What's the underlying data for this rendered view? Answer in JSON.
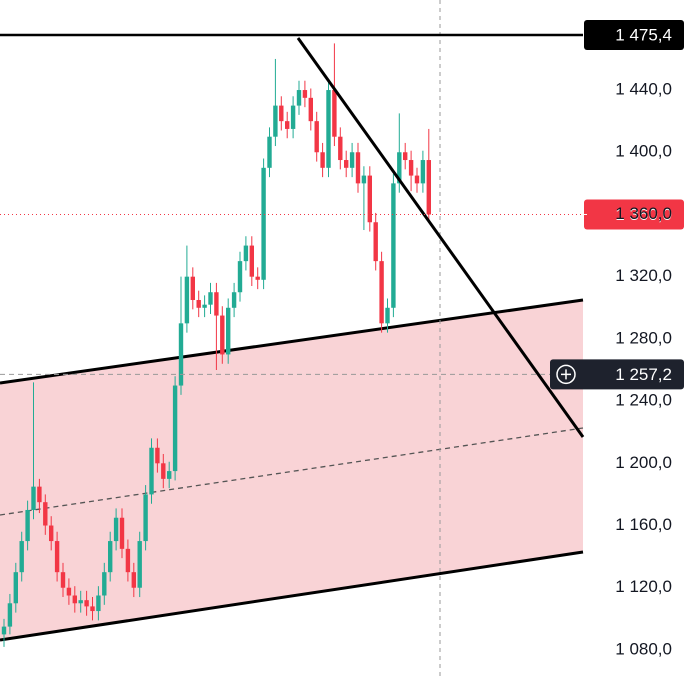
{
  "chart_data": {
    "type": "candlestick",
    "open": [
      1090,
      1095,
      1110,
      1130,
      1150,
      1170,
      1185,
      1175,
      1160,
      1150,
      1130,
      1120,
      1115,
      1110,
      1112,
      1108,
      1105,
      1115,
      1130,
      1150,
      1165,
      1145,
      1130,
      1120,
      1150,
      1180,
      1210,
      1200,
      1190,
      1195,
      1250,
      1290,
      1320,
      1305,
      1300,
      1302,
      1310,
      1295,
      1270,
      1300,
      1310,
      1330,
      1340,
      1320,
      1318,
      1390,
      1410,
      1430,
      1420,
      1415,
      1430,
      1440,
      1435,
      1420,
      1400,
      1390,
      1440,
      1410,
      1395,
      1390,
      1400,
      1380,
      1385,
      1355,
      1330,
      1290,
      1300,
      1380,
      1400,
      1395,
      1385,
      1380,
      1395
    ],
    "high": [
      1100,
      1116,
      1136,
      1156,
      1176,
      1252,
      1190,
      1180,
      1166,
      1156,
      1136,
      1126,
      1121,
      1118,
      1118,
      1114,
      1121,
      1136,
      1156,
      1171,
      1171,
      1151,
      1136,
      1156,
      1186,
      1216,
      1216,
      1206,
      1201,
      1256,
      1320,
      1340,
      1326,
      1311,
      1308,
      1316,
      1316,
      1301,
      1306,
      1316,
      1336,
      1346,
      1346,
      1326,
      1396,
      1416,
      1460,
      1436,
      1426,
      1436,
      1446,
      1446,
      1441,
      1426,
      1406,
      1446,
      1470,
      1416,
      1401,
      1406,
      1406,
      1391,
      1391,
      1361,
      1336,
      1306,
      1386,
      1425,
      1406,
      1401,
      1390,
      1401,
      1415
    ],
    "low": [
      1082,
      1090,
      1104,
      1124,
      1144,
      1164,
      1168,
      1154,
      1144,
      1124,
      1114,
      1109,
      1104,
      1104,
      1102,
      1099,
      1099,
      1109,
      1124,
      1144,
      1139,
      1124,
      1114,
      1114,
      1144,
      1174,
      1194,
      1184,
      1184,
      1189,
      1244,
      1284,
      1299,
      1294,
      1294,
      1296,
      1260,
      1264,
      1264,
      1294,
      1304,
      1324,
      1314,
      1312,
      1312,
      1384,
      1404,
      1414,
      1409,
      1409,
      1424,
      1429,
      1414,
      1394,
      1384,
      1384,
      1404,
      1389,
      1384,
      1384,
      1374,
      1350,
      1349,
      1324,
      1284,
      1284,
      1294,
      1374,
      1389,
      1375,
      1374,
      1374,
      1355
    ],
    "close": [
      1095,
      1110,
      1130,
      1150,
      1170,
      1185,
      1175,
      1160,
      1150,
      1130,
      1120,
      1115,
      1110,
      1112,
      1108,
      1105,
      1115,
      1130,
      1150,
      1165,
      1145,
      1130,
      1120,
      1150,
      1180,
      1210,
      1200,
      1190,
      1195,
      1250,
      1290,
      1320,
      1305,
      1300,
      1302,
      1310,
      1295,
      1270,
      1300,
      1310,
      1330,
      1340,
      1320,
      1318,
      1390,
      1410,
      1430,
      1420,
      1415,
      1430,
      1440,
      1435,
      1420,
      1400,
      1390,
      1440,
      1410,
      1395,
      1390,
      1400,
      1380,
      1385,
      1355,
      1330,
      1290,
      1300,
      1380,
      1400,
      1395,
      1385,
      1380,
      1395,
      1360
    ],
    "up_color": "#22ab94",
    "down_color": "#f23645",
    "ylim": [
      1062.6,
      1497.9
    ],
    "yticks": [
      {
        "value": 1080,
        "label": "1 080,0"
      },
      {
        "value": 1120,
        "label": "1 120,0"
      },
      {
        "value": 1160,
        "label": "1 160,0"
      },
      {
        "value": 1200,
        "label": "1 200,0"
      },
      {
        "value": 1240,
        "label": "1 240,0"
      },
      {
        "value": 1280,
        "label": "1 280,0"
      },
      {
        "value": 1320,
        "label": "1 320,0"
      },
      {
        "value": 1360,
        "label": "1 360,0"
      },
      {
        "value": 1400,
        "label": "1 400,0"
      },
      {
        "value": 1440,
        "label": "1 440,0"
      }
    ],
    "price_lines": [
      {
        "value": 1475.4,
        "label": "1 475,4",
        "color": "#000000"
      },
      {
        "value": 1360,
        "label": "1 360,0",
        "color": "#f23645"
      },
      {
        "value": 1257.2,
        "label": "1 257,2",
        "color": "#1e222d"
      }
    ]
  }
}
